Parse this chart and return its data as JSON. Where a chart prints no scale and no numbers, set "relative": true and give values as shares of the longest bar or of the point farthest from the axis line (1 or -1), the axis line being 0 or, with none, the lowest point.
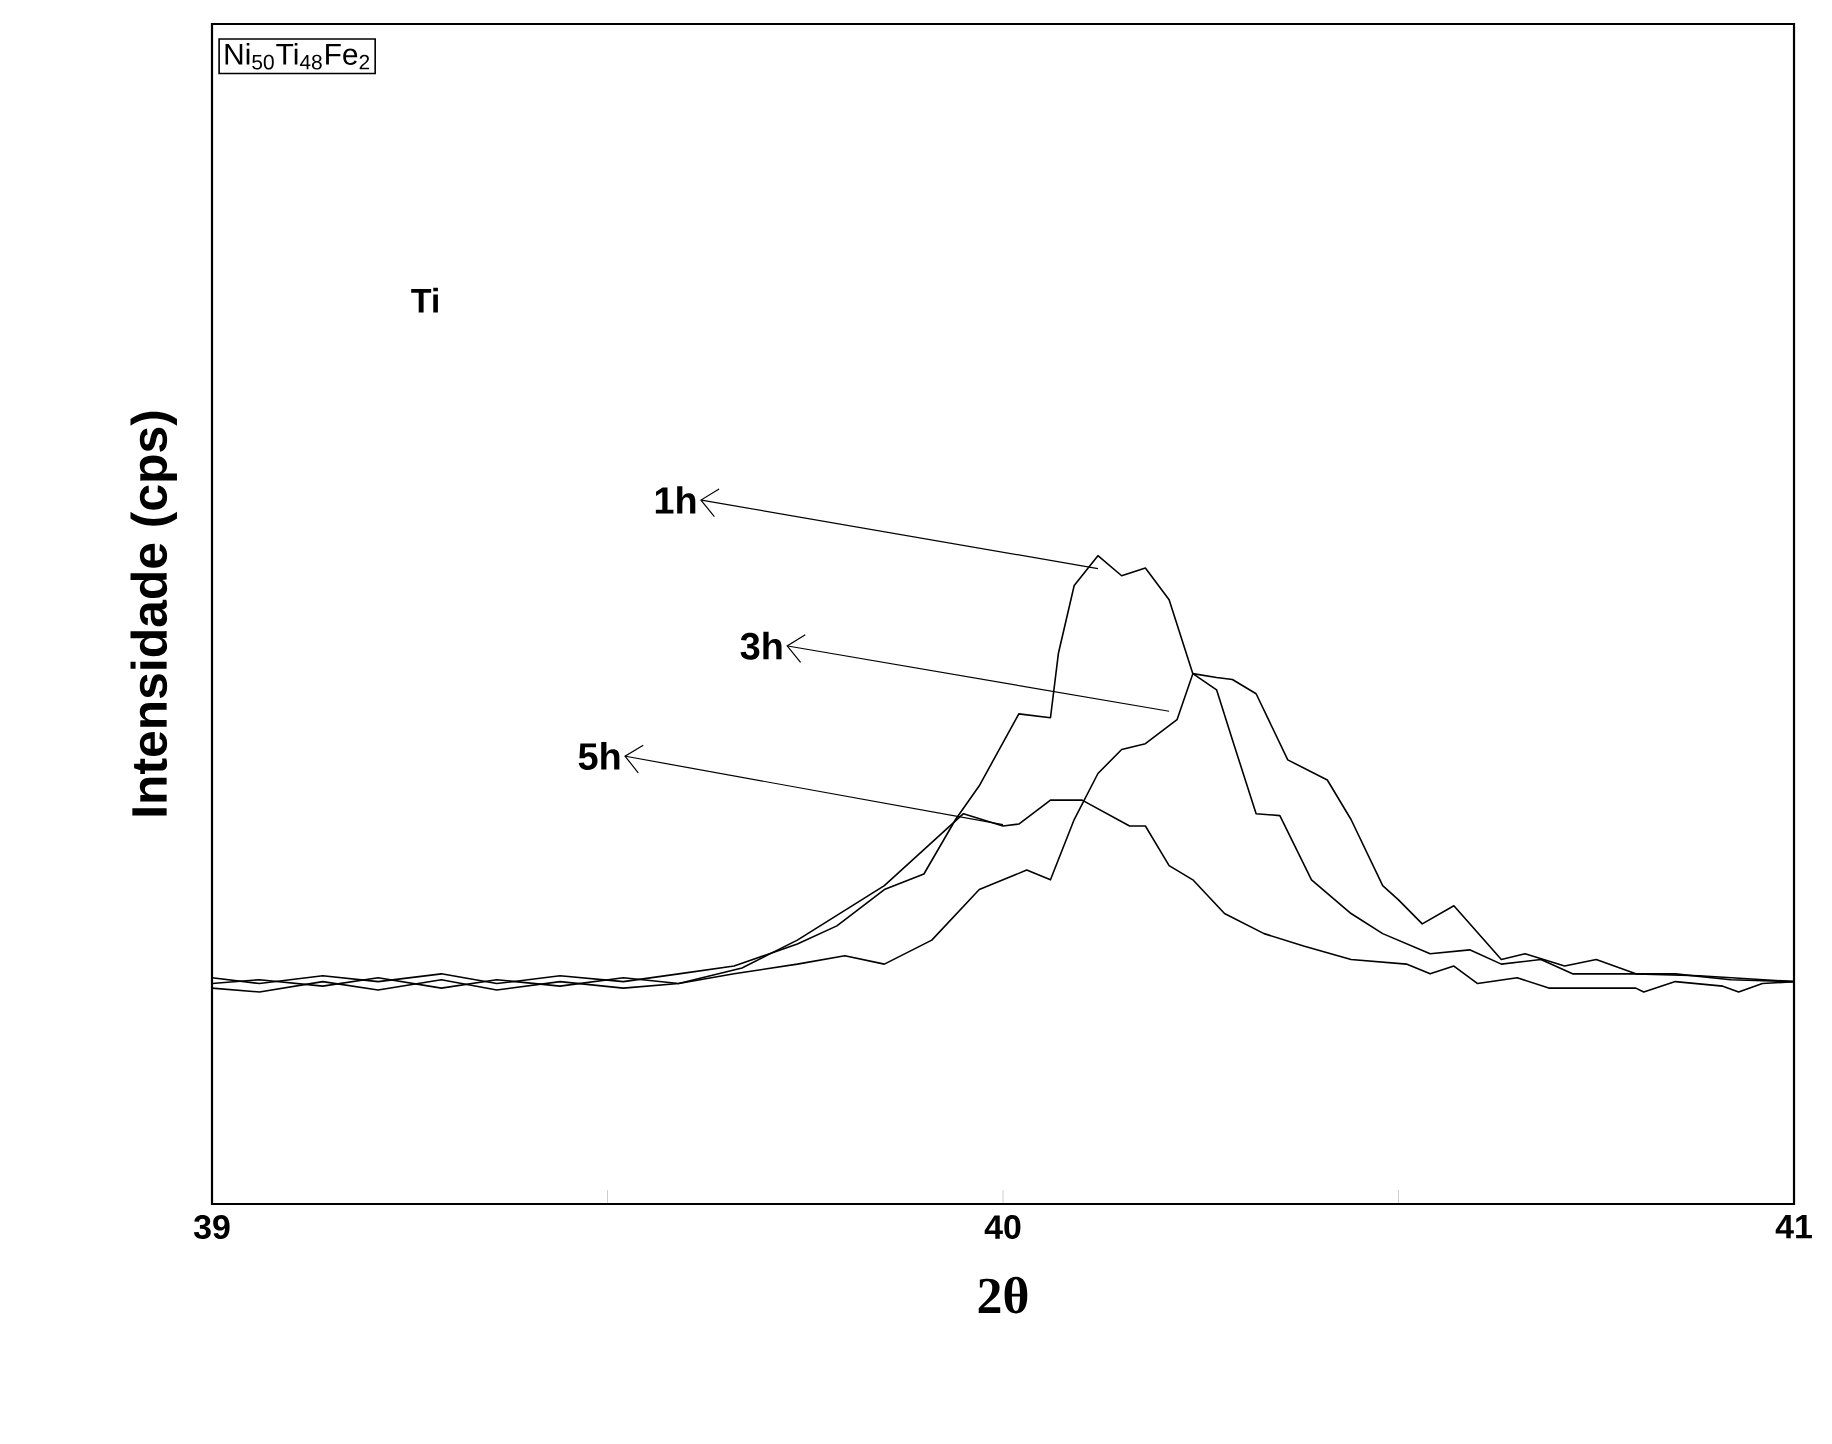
{
  "chart_data": {
    "type": "line",
    "xlabel": "2θ",
    "ylabel": "Intensidade (cps)",
    "annotations": [
      "Ni$_{50}$Ti$_{48}$Fe$_{2}$",
      "Ti"
    ],
    "relative": true,
    "legend": "left",
    "xlim": [
      39,
      41
    ],
    "xticks": [
      39,
      {
        "value": 39.5,
        "label": null
      },
      40,
      {
        "value": 40.5,
        "label": null
      },
      41
    ],
    "series": [
      {
        "name": "1h",
        "color": "#000000",
        "x": [
          39.0,
          39.06,
          39.14,
          39.21,
          39.29,
          39.36,
          39.44,
          39.52,
          39.59,
          39.66,
          39.74,
          39.79,
          39.85,
          39.9,
          39.94,
          39.97,
          40.02,
          40.06,
          40.07,
          40.09,
          40.12,
          40.15,
          40.18,
          40.21,
          40.24,
          40.27,
          40.29,
          40.32,
          40.35,
          40.39,
          40.44,
          40.48,
          40.54,
          40.59,
          40.63,
          40.68,
          40.72,
          40.8,
          40.88,
          41.0
        ],
        "values": [
          0.349,
          0.34,
          0.352,
          0.343,
          0.355,
          0.34,
          0.352,
          0.343,
          0.355,
          0.367,
          0.401,
          0.429,
          0.485,
          0.509,
          0.593,
          0.645,
          0.756,
          0.75,
          0.849,
          0.954,
          1.0,
          0.969,
          0.981,
          0.932,
          0.818,
          0.793,
          0.716,
          0.602,
          0.599,
          0.5,
          0.448,
          0.417,
          0.386,
          0.392,
          0.37,
          0.377,
          0.355,
          0.355,
          0.352,
          0.343
        ]
      },
      {
        "name": "3h",
        "color": "#000000",
        "x": [
          39.0,
          39.06,
          39.14,
          39.21,
          39.29,
          39.36,
          39.44,
          39.52,
          39.59,
          39.66,
          39.74,
          39.8,
          39.85,
          39.91,
          39.97,
          40.03,
          40.06,
          40.09,
          40.12,
          40.15,
          40.18,
          40.22,
          40.24,
          40.27,
          40.29,
          40.32,
          40.36,
          40.41,
          40.44,
          40.48,
          40.5,
          40.53,
          40.57,
          40.63,
          40.66,
          40.71,
          40.75,
          40.8,
          40.85,
          40.92,
          41.0
        ],
        "values": [
          0.333,
          0.327,
          0.343,
          0.33,
          0.346,
          0.33,
          0.343,
          0.333,
          0.34,
          0.355,
          0.37,
          0.383,
          0.37,
          0.407,
          0.485,
          0.515,
          0.5,
          0.593,
          0.664,
          0.701,
          0.71,
          0.747,
          0.818,
          0.812,
          0.809,
          0.787,
          0.685,
          0.654,
          0.593,
          0.491,
          0.469,
          0.432,
          0.46,
          0.377,
          0.386,
          0.367,
          0.377,
          0.355,
          0.355,
          0.346,
          0.343
        ]
      },
      {
        "name": "5h",
        "color": "#000000",
        "x": [
          39.0,
          39.06,
          39.14,
          39.21,
          39.29,
          39.36,
          39.44,
          39.52,
          39.59,
          39.67,
          39.74,
          39.85,
          39.95,
          40.0,
          40.02,
          40.06,
          40.1,
          40.16,
          40.18,
          40.21,
          40.24,
          40.28,
          40.33,
          40.38,
          40.44,
          40.51,
          40.54,
          40.57,
          40.6,
          40.65,
          40.69,
          40.8,
          40.81,
          40.85,
          40.91,
          40.93,
          40.96,
          41.0
        ],
        "values": [
          0.34,
          0.346,
          0.336,
          0.349,
          0.333,
          0.346,
          0.336,
          0.349,
          0.34,
          0.364,
          0.407,
          0.491,
          0.602,
          0.583,
          0.586,
          0.623,
          0.623,
          0.583,
          0.583,
          0.522,
          0.5,
          0.448,
          0.417,
          0.398,
          0.377,
          0.37,
          0.355,
          0.367,
          0.34,
          0.349,
          0.333,
          0.333,
          0.327,
          0.343,
          0.336,
          0.327,
          0.34,
          0.343
        ]
      }
    ]
  }
}
